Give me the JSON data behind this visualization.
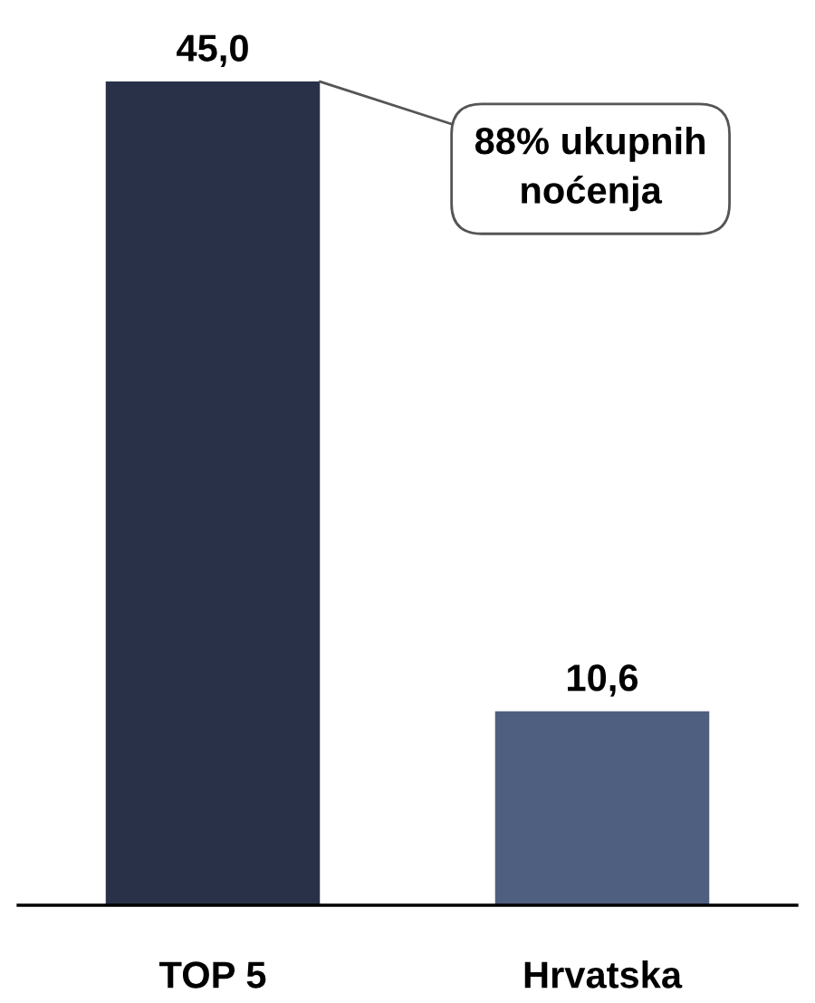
{
  "chart_data": {
    "type": "bar",
    "categories": [
      "TOP 5",
      "Hrvatska"
    ],
    "values": [
      45.0,
      10.6
    ],
    "colors": [
      "#283147",
      "#4f5f80"
    ],
    "value_labels": [
      "45,0",
      "10,6"
    ],
    "annotations": [
      "88% ukupnih\nnoćenja"
    ]
  }
}
